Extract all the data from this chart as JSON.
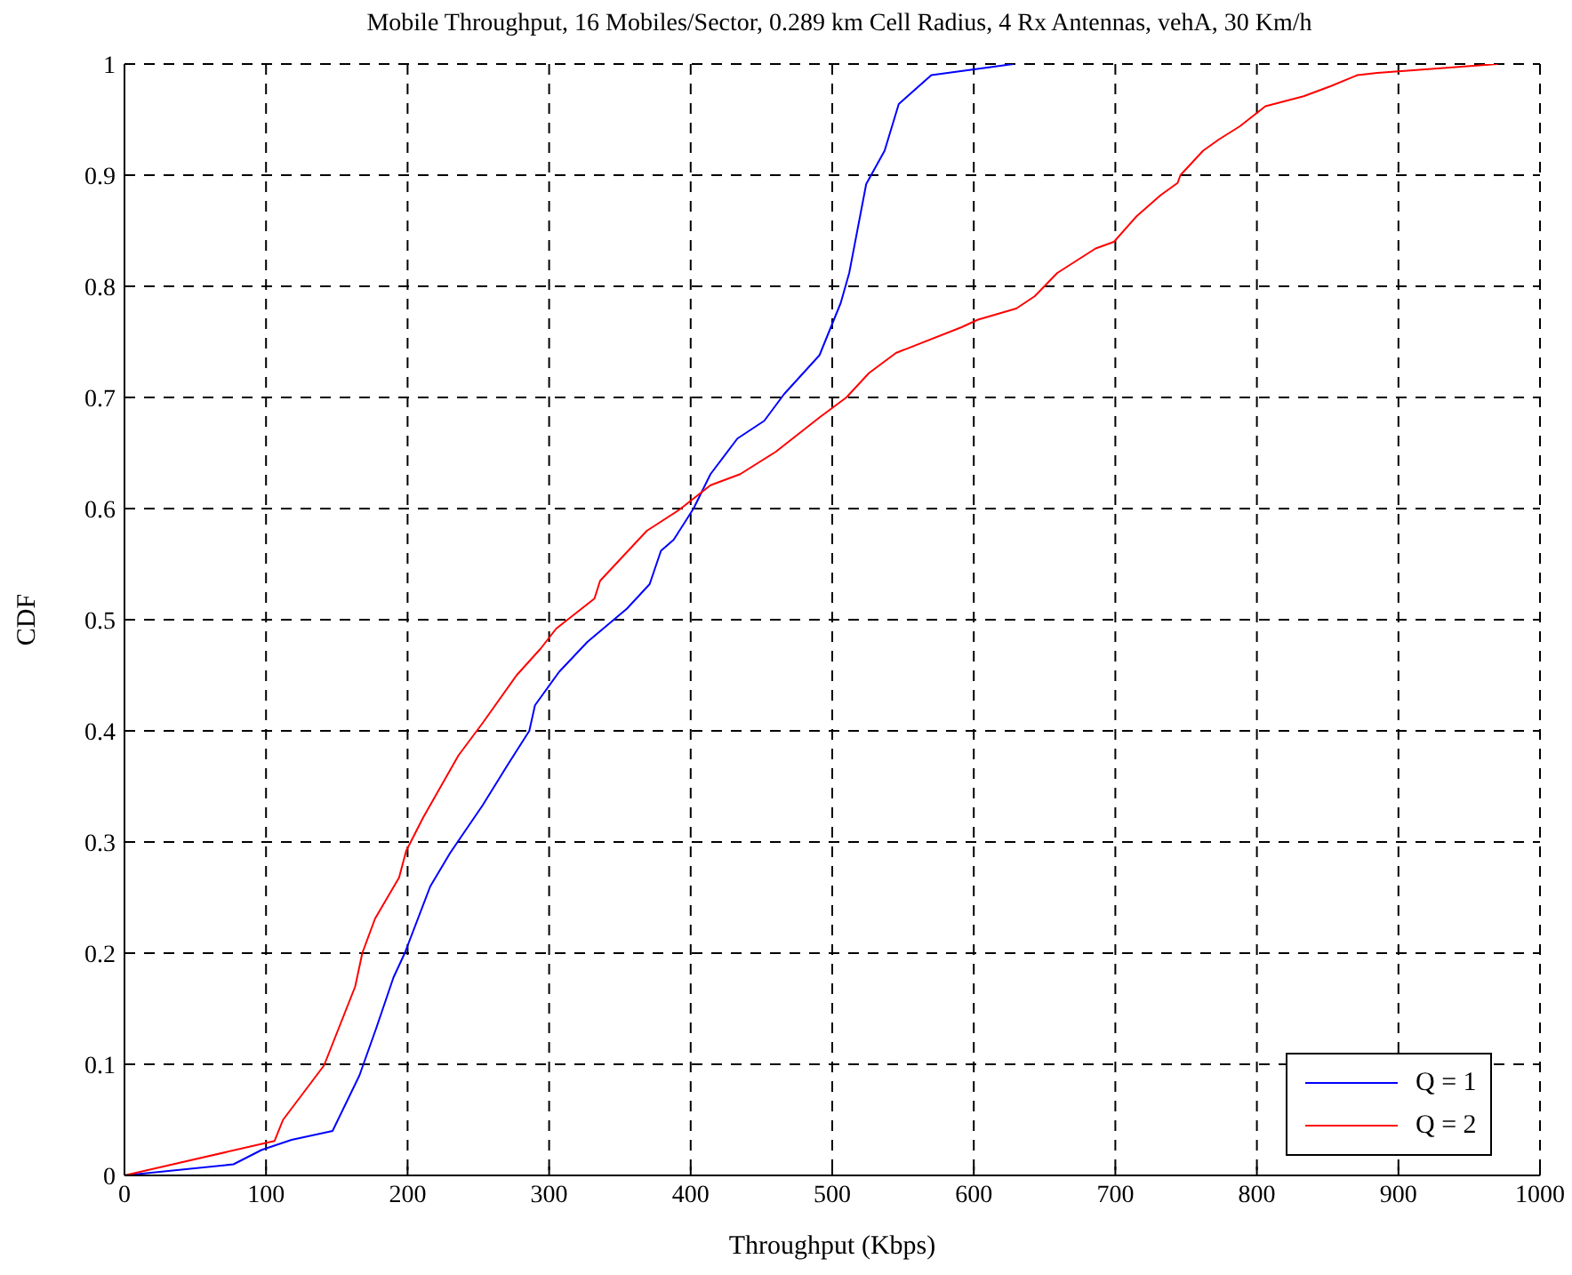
{
  "chart_data": {
    "type": "line",
    "title": "Mobile Throughput, 16 Mobiles/Sector, 0.289 km Cell Radius, 4 Rx Antennas, vehA, 30 Km/h",
    "xlabel": "Throughput (Kbps)",
    "ylabel": "CDF",
    "xlim": [
      0,
      1000
    ],
    "ylim": [
      0,
      1
    ],
    "xticks": [
      0,
      100,
      200,
      300,
      400,
      500,
      600,
      700,
      800,
      900,
      1000
    ],
    "yticks": [
      0,
      0.1,
      0.2,
      0.3,
      0.4,
      0.5,
      0.6,
      0.7,
      0.8,
      0.9,
      1
    ],
    "grid": true,
    "legend": "bottom right",
    "marker": "none",
    "line_style": "solid",
    "series": [
      {
        "name": "Q = 1",
        "color": "#0000ff",
        "x": [
          0,
          77,
          97,
          118,
          147,
          166,
          178,
          190,
          198,
          216,
          230,
          253,
          271,
          286,
          290,
          307,
          327,
          355,
          371,
          379,
          388,
          402,
          414,
          433,
          452,
          466,
          491,
          506,
          512,
          524,
          537,
          547,
          570,
          628
        ],
        "values": [
          0,
          0.01,
          0.023,
          0.032,
          0.04,
          0.09,
          0.133,
          0.178,
          0.2,
          0.26,
          0.29,
          0.333,
          0.37,
          0.4,
          0.423,
          0.453,
          0.48,
          0.51,
          0.532,
          0.562,
          0.572,
          0.6,
          0.631,
          0.663,
          0.679,
          0.703,
          0.738,
          0.785,
          0.812,
          0.892,
          0.922,
          0.964,
          0.99,
          1
        ]
      },
      {
        "name": "Q = 2",
        "color": "#ff0000",
        "x": [
          0,
          106,
          112,
          141,
          163,
          168,
          177,
          194,
          199,
          211,
          236,
          253,
          277,
          294,
          305,
          332,
          336,
          369,
          392,
          414,
          435,
          460,
          491,
          510,
          526,
          545,
          591,
          603,
          630,
          643,
          659,
          686,
          699,
          715,
          732,
          744,
          746,
          762,
          773,
          788,
          806,
          833,
          852,
          871,
          885,
          970
        ],
        "values": [
          0,
          0.031,
          0.05,
          0.099,
          0.17,
          0.2,
          0.231,
          0.268,
          0.292,
          0.322,
          0.378,
          0.407,
          0.45,
          0.474,
          0.492,
          0.519,
          0.535,
          0.58,
          0.599,
          0.621,
          0.631,
          0.651,
          0.682,
          0.7,
          0.722,
          0.74,
          0.763,
          0.77,
          0.78,
          0.791,
          0.812,
          0.834,
          0.84,
          0.863,
          0.882,
          0.893,
          0.9,
          0.922,
          0.932,
          0.944,
          0.962,
          0.971,
          0.98,
          0.99,
          0.992,
          1
        ]
      }
    ]
  }
}
